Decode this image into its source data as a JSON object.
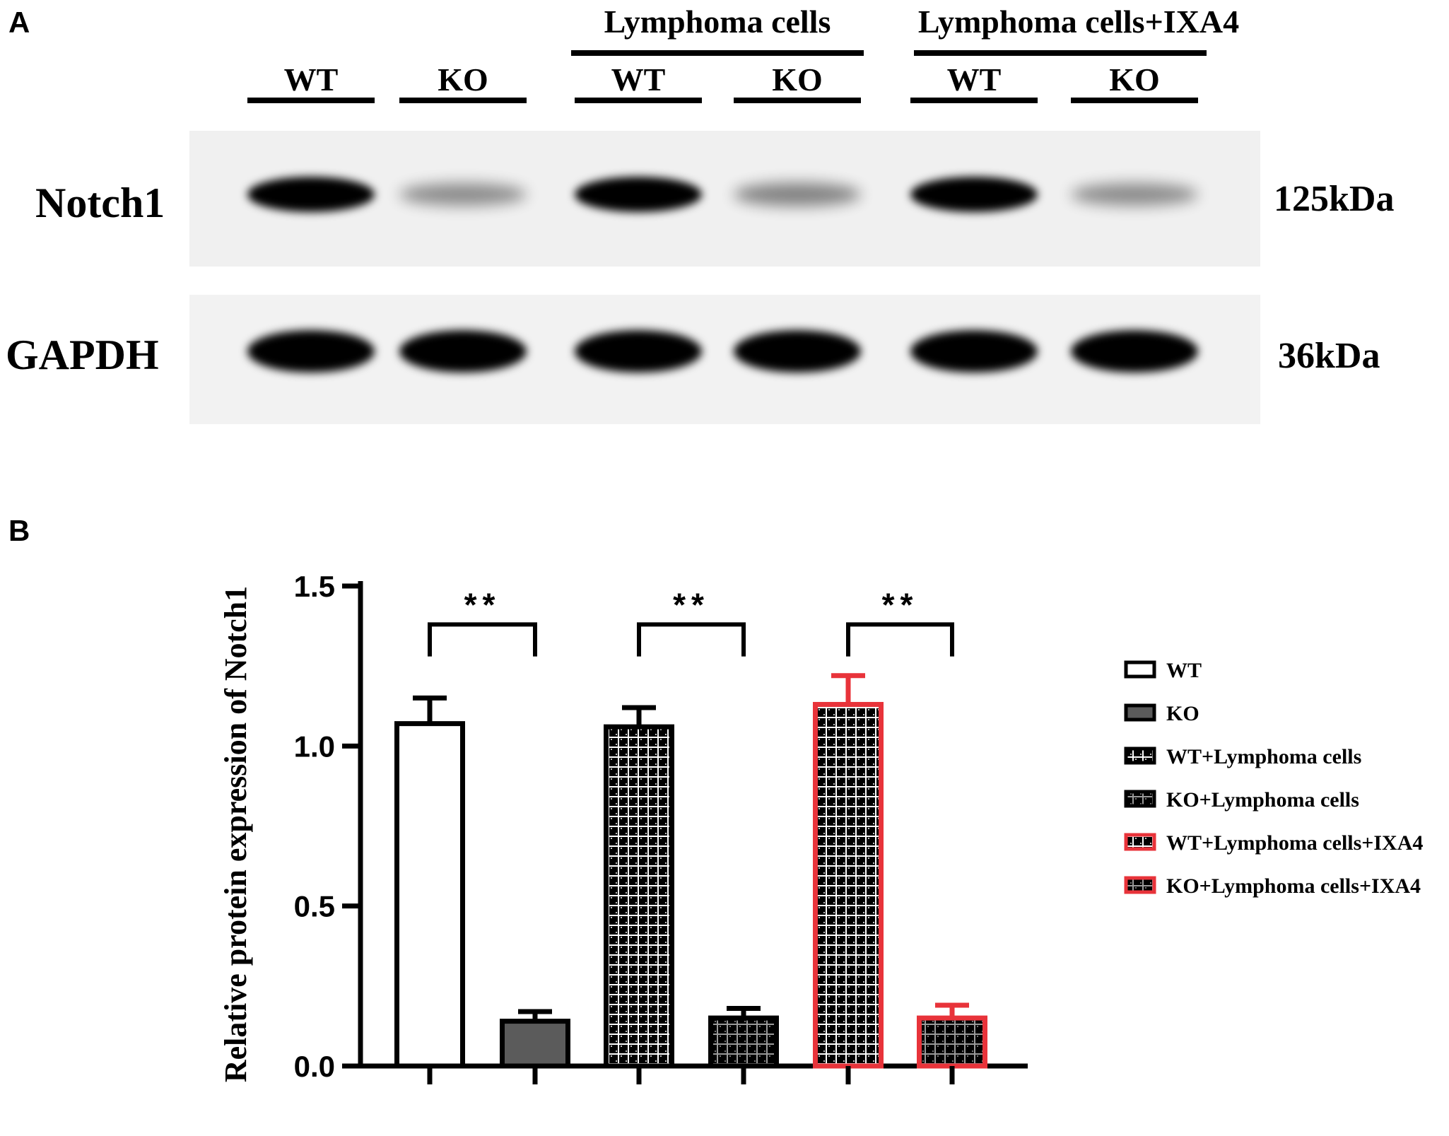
{
  "panel_a": {
    "label": "A",
    "group_headers": [
      "Lymphoma cells",
      "Lymphoma cells+IXA4"
    ],
    "lanes": [
      "WT",
      "KO",
      "WT",
      "KO",
      "WT",
      "KO"
    ],
    "blots": [
      {
        "protein": "Notch1",
        "size": "125kDa",
        "intensity": [
          1.0,
          0.25,
          1.0,
          0.3,
          1.0,
          0.25
        ]
      },
      {
        "protein": "GAPDH",
        "size": "36kDa",
        "intensity": [
          1.0,
          1.0,
          1.0,
          1.0,
          1.0,
          1.0
        ]
      }
    ]
  },
  "panel_b": {
    "label": "B",
    "significance": [
      "**",
      "**",
      "**"
    ]
  },
  "chart_data": {
    "type": "bar",
    "title": "",
    "xlabel": "",
    "ylabel": "Relative protein expression of Notch1",
    "ylim": [
      0,
      1.5
    ],
    "yticks": [
      "0.0",
      "0.5",
      "1.0",
      "1.5"
    ],
    "grid": false,
    "legend_position": "right",
    "categories": [
      "WT",
      "KO",
      "WT+Lymphoma cells",
      "KO+Lymphoma cells",
      "WT+Lymphoma cells+IXA4",
      "KO+Lymphoma cells+IXA4"
    ],
    "values": [
      1.07,
      0.14,
      1.06,
      0.15,
      1.13,
      0.15
    ],
    "errors": [
      0.08,
      0.03,
      0.06,
      0.03,
      0.09,
      0.04
    ],
    "styles": [
      {
        "fill": "#ffffff",
        "stroke": "#000000",
        "pattern": "none"
      },
      {
        "fill": "#5b5b5b",
        "stroke": "#000000",
        "pattern": "none"
      },
      {
        "fill": "#000000",
        "stroke": "#000000",
        "pattern": "grid-white"
      },
      {
        "fill": "#000000",
        "stroke": "#000000",
        "pattern": "grid-gray"
      },
      {
        "fill": "#000000",
        "stroke": "#e8333a",
        "pattern": "grid-white"
      },
      {
        "fill": "#000000",
        "stroke": "#e8333a",
        "pattern": "grid-gray"
      }
    ],
    "comparisons": [
      [
        0,
        1,
        "**"
      ],
      [
        2,
        3,
        "**"
      ],
      [
        4,
        5,
        "**"
      ]
    ]
  }
}
